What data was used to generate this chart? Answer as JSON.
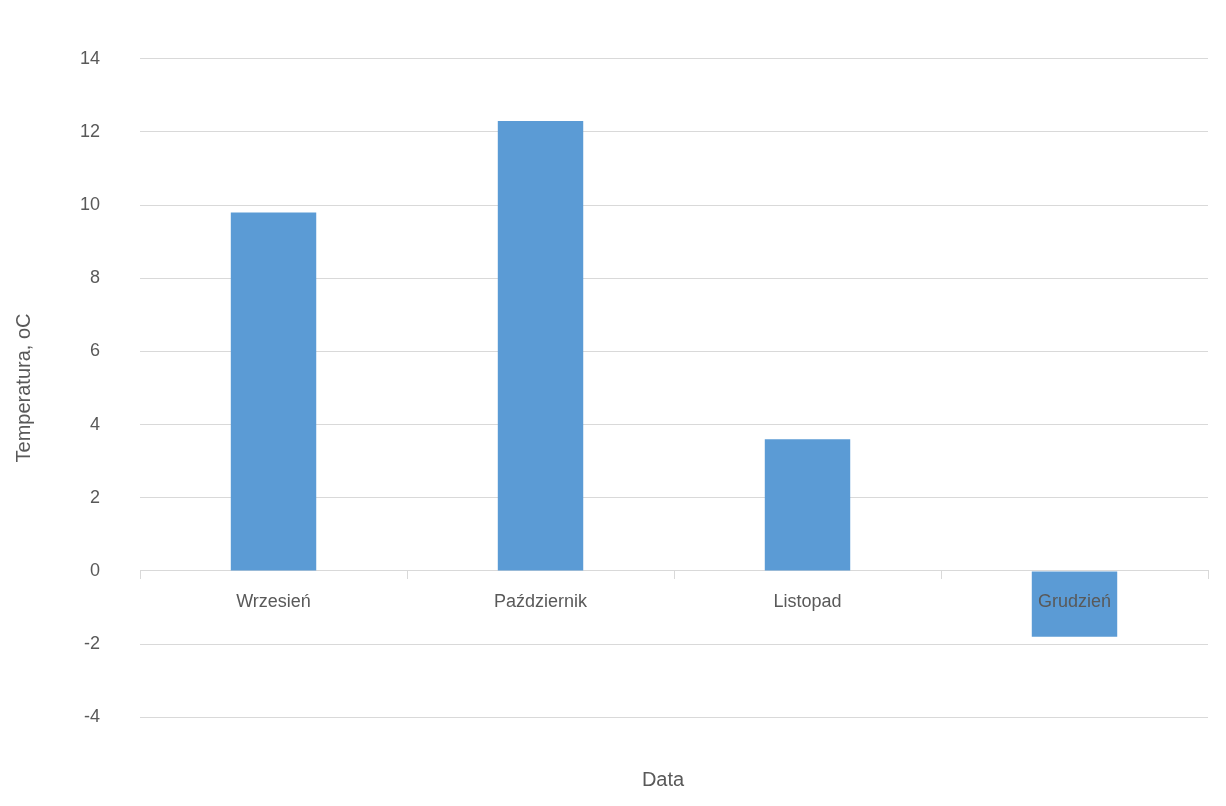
{
  "chart_data": {
    "type": "bar",
    "xlabel": "Data",
    "ylabel": "Temperatura, oC",
    "categories": [
      "Wrzesień",
      "Październik",
      "Listopad",
      "Grudzień"
    ],
    "values": [
      9.8,
      12.3,
      3.6,
      -1.8
    ],
    "color": "#5b9bd5",
    "ylim": [
      -4,
      14
    ],
    "yticks": [
      -4,
      -2,
      0,
      2,
      4,
      6,
      8,
      10,
      12,
      14
    ],
    "grid": "y",
    "legend": false
  }
}
